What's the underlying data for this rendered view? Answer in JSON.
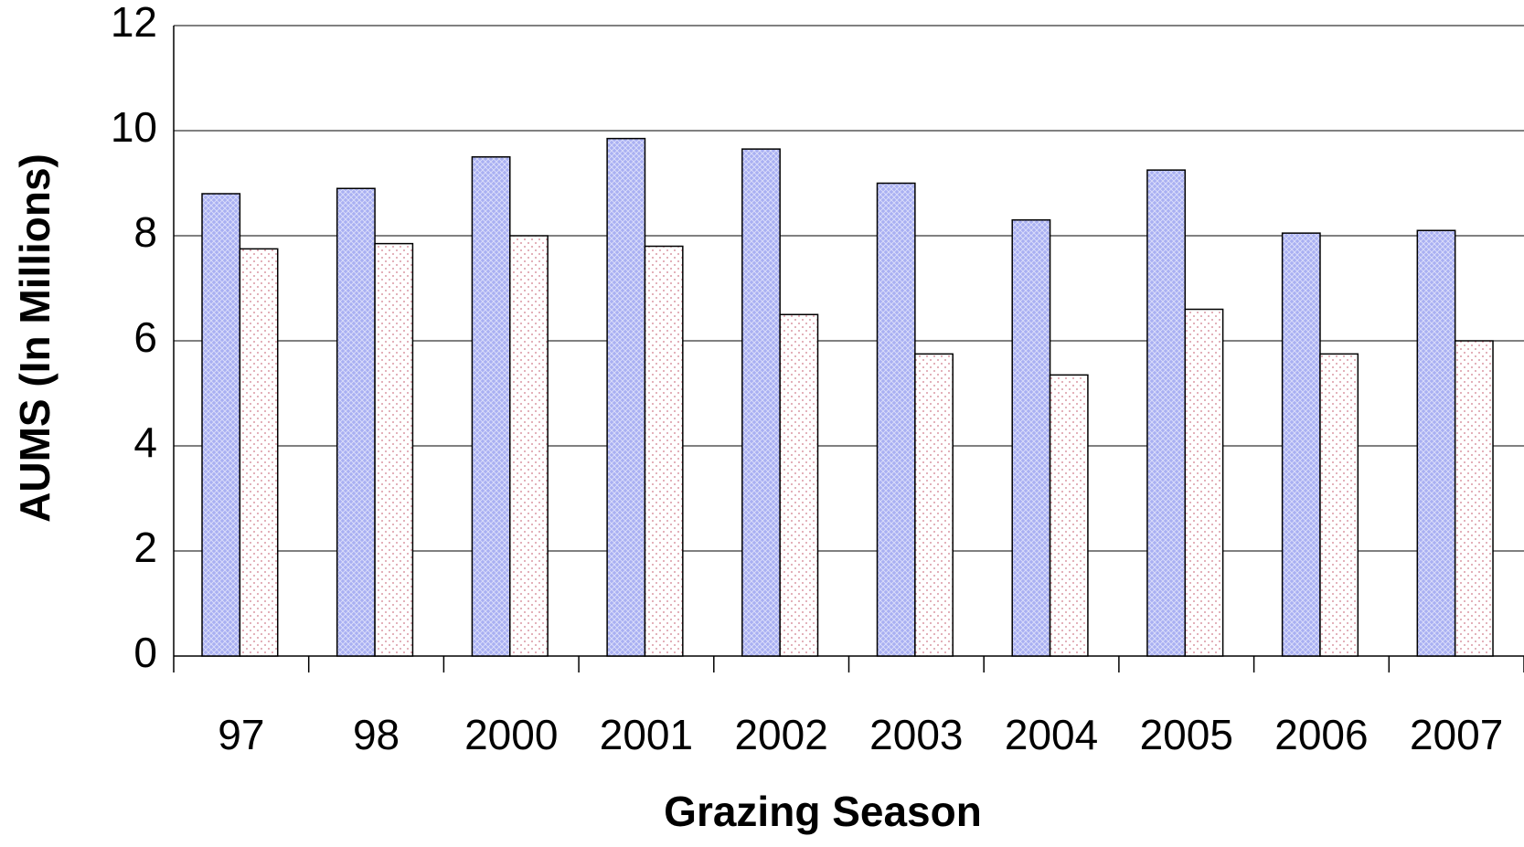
{
  "chart_data": {
    "type": "bar",
    "x_label": "Grazing Season",
    "y_label": "AUMS  (In Millions)",
    "categories": [
      "97",
      "98",
      "2000",
      "2001",
      "2002",
      "2003",
      "2004",
      "2005",
      "2006",
      "2007"
    ],
    "series": [
      {
        "color": "#a9b0f2",
        "values": [
          8.8,
          8.9,
          9.5,
          9.85,
          9.65,
          9.0,
          8.3,
          9.25,
          8.05,
          8.1
        ]
      },
      {
        "color": "#d07a8a",
        "values": [
          7.75,
          7.85,
          8.0,
          7.8,
          6.5,
          5.75,
          5.35,
          6.6,
          5.75,
          6.0
        ]
      }
    ],
    "ylim": [
      0,
      12
    ],
    "yticks": [
      0,
      2,
      4,
      6,
      8,
      10,
      12
    ],
    "grid": true
  }
}
